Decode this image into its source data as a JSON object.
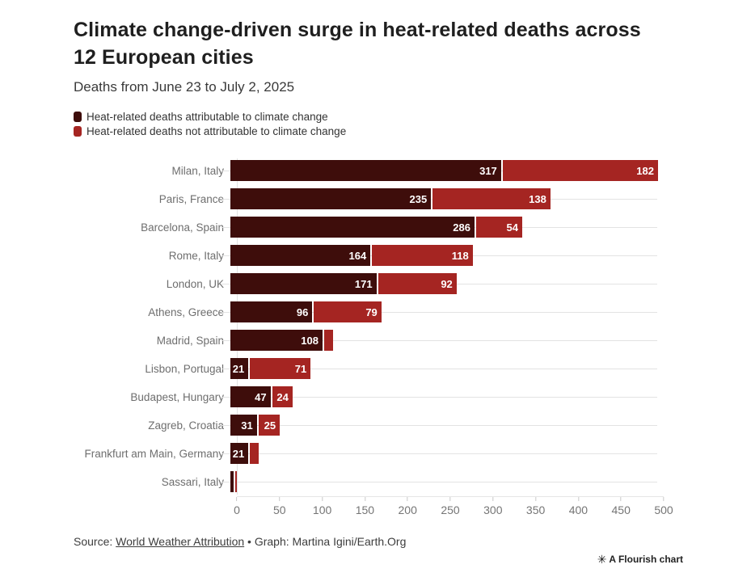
{
  "header": {
    "title": "Climate change-driven surge in heat-related deaths across 12 European cities",
    "subtitle": "Deaths from June 23 to July 2, 2025"
  },
  "legend": [
    {
      "label": "Heat-related deaths attributable to climate change",
      "color": "#3E0D0B"
    },
    {
      "label": "Heat-related deaths not attributable to climate change",
      "color": "#A52522"
    }
  ],
  "chart_data": {
    "type": "bar",
    "orientation": "horizontal",
    "stacked": true,
    "title": "Climate change-driven surge in heat-related deaths across 12 European cities",
    "subtitle": "Deaths from June 23 to July 2, 2025",
    "categories": [
      "Milan, Italy",
      "Paris, France",
      "Barcelona, Spain",
      "Rome, Italy",
      "London, UK",
      "Athens, Greece",
      "Madrid, Spain",
      "Lisbon, Portugal",
      "Budapest, Hungary",
      "Zagreb, Croatia",
      "Frankfurt am Main, Germany",
      "Sassari, Italy"
    ],
    "series": [
      {
        "name": "Heat-related deaths attributable to climate change",
        "color": "#3E0D0B",
        "values": [
          317,
          235,
          286,
          164,
          171,
          96,
          108,
          21,
          47,
          31,
          21,
          4
        ]
      },
      {
        "name": "Heat-related deaths not attributable to climate change",
        "color": "#A52522",
        "values": [
          182,
          138,
          54,
          118,
          92,
          79,
          10,
          71,
          24,
          25,
          10,
          2
        ]
      }
    ],
    "xlim": [
      0,
      500
    ],
    "x_ticks": [
      0,
      50,
      100,
      150,
      200,
      250,
      300,
      350,
      400,
      450,
      500
    ],
    "grid": "horizontal-row-lines",
    "legend_position": "top-left",
    "value_label_min": 20
  },
  "footer": {
    "source_prefix": "Source: ",
    "source_link": "World Weather Attribution",
    "source_suffix": " • Graph: Martina Igini/Earth.Org"
  },
  "badge": {
    "icon": "✳",
    "label": "A Flourish chart"
  }
}
